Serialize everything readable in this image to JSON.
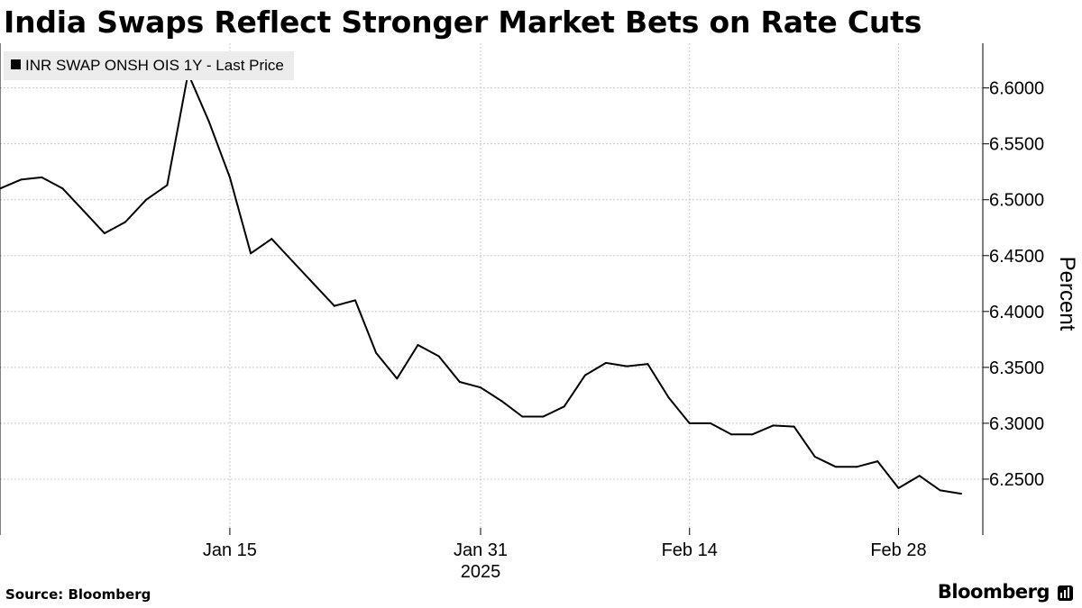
{
  "header": {
    "title": "India Swaps Reflect Stronger Market Bets on Rate Cuts"
  },
  "footer": {
    "source": "Source: Bloomberg",
    "brand": "Bloomberg"
  },
  "colors": {
    "line": "#000000",
    "grid": "#c8c8c8",
    "legend_bg": "#ececec"
  },
  "chart_data": {
    "type": "line",
    "title": "India Swaps Reflect Stronger Market Bets on Rate Cuts",
    "xlabel": "",
    "ylabel": "Percent",
    "legend_position": "top-left",
    "ylim": [
      6.2,
      6.64
    ],
    "yticks": [
      6.25,
      6.3,
      6.35,
      6.4,
      6.45,
      6.5,
      6.55,
      6.6
    ],
    "ytick_labels": [
      "6.2500",
      "6.3000",
      "6.3500",
      "6.4000",
      "6.4500",
      "6.5000",
      "6.5500",
      "6.6000"
    ],
    "xticks": [
      {
        "label": "Jan 15",
        "index": 11
      },
      {
        "label": "Jan 31",
        "index": 23
      },
      {
        "label": "Feb 14",
        "index": 33
      },
      {
        "label": "Feb 28",
        "index": 43
      }
    ],
    "year_label": {
      "label": "2025",
      "index": 23
    },
    "grid": true,
    "series": [
      {
        "name": "INR SWAP ONSH OIS 1Y - Last Price",
        "values": [
          6.51,
          6.518,
          6.52,
          6.51,
          6.49,
          6.47,
          6.48,
          6.5,
          6.513,
          6.613,
          6.57,
          6.52,
          6.452,
          6.465,
          6.445,
          6.425,
          6.405,
          6.41,
          6.363,
          6.34,
          6.37,
          6.36,
          6.337,
          6.332,
          6.32,
          6.306,
          6.306,
          6.315,
          6.343,
          6.354,
          6.351,
          6.353,
          6.323,
          6.3,
          6.3,
          6.29,
          6.29,
          6.298,
          6.297,
          6.27,
          6.261,
          6.261,
          6.266,
          6.242,
          6.253,
          6.24,
          6.237
        ]
      }
    ]
  }
}
